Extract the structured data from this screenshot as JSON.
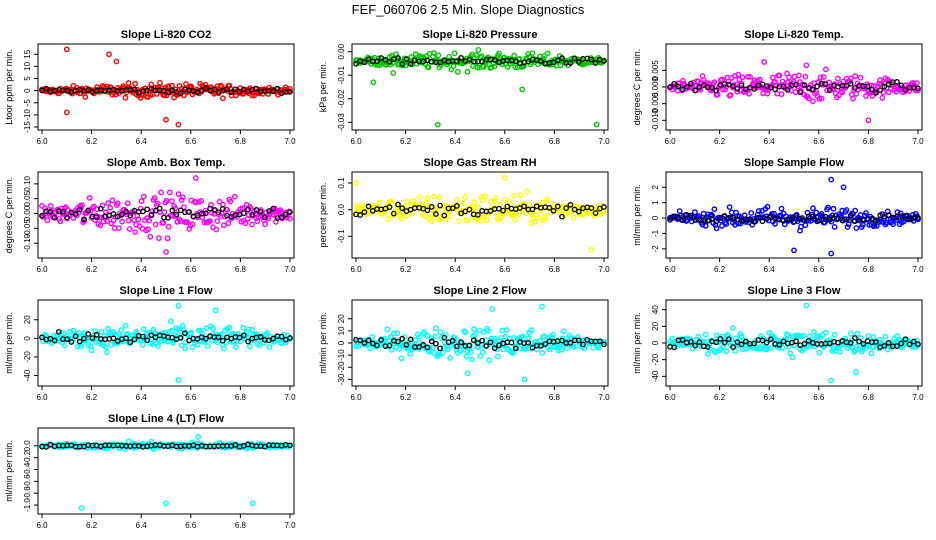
{
  "figure_title": "FEF_060706  2.5 Min. Slope Diagnostics",
  "colors": {
    "red": "#ff0000",
    "green": "#00c800",
    "magenta": "#ff00ff",
    "yellow": "#ffff00",
    "blue": "#0000ff",
    "cyan": "#00ffff",
    "black": "#000000"
  },
  "chart_data": [
    {
      "type": "scatter",
      "title": "Slope Li-820 CO2",
      "ylabel": "Ltoor ppm per min.",
      "xlim": [
        6.0,
        7.0
      ],
      "xticks": [
        "6.0",
        "6.2",
        "6.4",
        "6.6",
        "6.8",
        "7.0"
      ],
      "ylim": [
        -15,
        18
      ],
      "yticks": [
        "-15",
        "-10",
        "-5",
        "0",
        "5",
        "10",
        "15"
      ],
      "color": "red",
      "spread": 2.0,
      "outliers": [
        [
          6.1,
          17
        ],
        [
          6.27,
          15
        ],
        [
          6.55,
          -14
        ],
        [
          6.1,
          -9
        ],
        [
          6.3,
          12
        ],
        [
          6.5,
          -12
        ]
      ]
    },
    {
      "type": "scatter",
      "title": "Slope Li-820 Pressure",
      "ylabel": "kPa per min.",
      "xlim": [
        6.0,
        7.0
      ],
      "xticks": [
        "6.0",
        "6.2",
        "6.4",
        "6.6",
        "6.8",
        "7.0"
      ],
      "ylim": [
        -0.032,
        0.002
      ],
      "yticks": [
        "-0.03",
        "-0.02",
        "-0.01",
        "0.00"
      ],
      "color": "green",
      "spread": 0.0025,
      "center": -0.004,
      "outliers": [
        [
          6.33,
          -0.031
        ],
        [
          6.97,
          -0.031
        ],
        [
          6.07,
          -0.013
        ],
        [
          6.67,
          -0.016
        ],
        [
          6.15,
          -0.009
        ]
      ]
    },
    {
      "type": "scatter",
      "title": "Slope Li-820 Temp.",
      "ylabel": "degrees C per min.",
      "xlim": [
        6.0,
        7.0
      ],
      "xticks": [
        "6.0",
        "6.2",
        "6.4",
        "6.6",
        "6.8",
        "7.0"
      ],
      "ylim": [
        -0.012,
        0.012
      ],
      "yticks": [
        "-0.010",
        "-0.005",
        "0.000",
        "0.005"
      ],
      "color": "magenta",
      "spread": 0.003,
      "outliers": [
        [
          6.8,
          -0.01
        ],
        [
          6.38,
          0.0075
        ],
        [
          6.55,
          0.0065
        ]
      ]
    },
    {
      "type": "scatter",
      "title": "Slope Amb. Box Temp.",
      "ylabel": "degrees C per min.",
      "xlim": [
        6.0,
        7.0
      ],
      "xticks": [
        "6.0",
        "6.2",
        "6.4",
        "6.6",
        "6.8",
        "7.0"
      ],
      "ylim": [
        -0.14,
        0.13
      ],
      "yticks": [
        "-0.10",
        "-0.05",
        "0.00",
        "0.05",
        "0.10"
      ],
      "color": "magenta",
      "spread": 0.045,
      "outliers": [
        [
          6.62,
          0.12
        ],
        [
          6.5,
          -0.13
        ]
      ]
    },
    {
      "type": "scatter",
      "title": "Slope Gas Stream RH",
      "ylabel": "percent per min.",
      "xlim": [
        6.0,
        7.0
      ],
      "xticks": [
        "6.0",
        "6.2",
        "6.4",
        "6.6",
        "6.8",
        "7.0"
      ],
      "ylim": [
        -0.17,
        0.13
      ],
      "yticks": [
        "-0.1",
        "0.0",
        "0.1"
      ],
      "color": "yellow",
      "spread": 0.04,
      "outliers": [
        [
          6.6,
          0.12
        ],
        [
          6.0,
          0.1
        ],
        [
          6.95,
          -0.15
        ]
      ]
    },
    {
      "type": "scatter",
      "title": "Slope Sample Flow",
      "ylabel": "ml/min per min.",
      "xlim": [
        6.0,
        7.0
      ],
      "xticks": [
        "6.0",
        "6.2",
        "6.4",
        "6.6",
        "6.8",
        "7.0"
      ],
      "ylim": [
        -2.4,
        2.8
      ],
      "yticks": [
        "-2",
        "-1",
        "0",
        "1",
        "2"
      ],
      "color": "blue",
      "spread": 0.5,
      "outliers": [
        [
          6.65,
          2.5
        ],
        [
          6.7,
          2.0
        ],
        [
          6.5,
          -2.1
        ],
        [
          6.65,
          -2.3
        ]
      ]
    },
    {
      "type": "scatter",
      "title": "Slope Line 1 Flow",
      "ylabel": "ml/min per min.",
      "xlim": [
        6.0,
        7.0
      ],
      "xticks": [
        "6.0",
        "6.2",
        "6.4",
        "6.6",
        "6.8",
        "7.0"
      ],
      "ylim": [
        -48,
        38
      ],
      "yticks": [
        "-40",
        "-20",
        "0",
        "20"
      ],
      "color": "cyan",
      "spread": 10,
      "outliers": [
        [
          6.55,
          -45
        ],
        [
          6.55,
          35
        ],
        [
          6.7,
          30
        ]
      ]
    },
    {
      "type": "scatter",
      "title": "Slope Line 2 Flow",
      "ylabel": "ml/min per min.",
      "xlim": [
        6.0,
        7.0
      ],
      "xticks": [
        "6.0",
        "6.2",
        "6.4",
        "6.6",
        "6.8",
        "7.0"
      ],
      "ylim": [
        -33,
        33
      ],
      "yticks": [
        "-30",
        "-20",
        "-10",
        "0",
        "10",
        "20"
      ],
      "color": "cyan",
      "spread": 9,
      "outliers": [
        [
          6.68,
          -30
        ],
        [
          6.75,
          30
        ],
        [
          6.55,
          28
        ],
        [
          6.45,
          -25
        ]
      ]
    },
    {
      "type": "scatter",
      "title": "Slope Line 3 Flow",
      "ylabel": "ml/min per min.",
      "xlim": [
        6.0,
        7.0
      ],
      "xticks": [
        "6.0",
        "6.2",
        "6.4",
        "6.6",
        "6.8",
        "7.0"
      ],
      "ylim": [
        -48,
        48
      ],
      "yticks": [
        "-40",
        "-20",
        "0",
        "20",
        "40"
      ],
      "color": "cyan",
      "spread": 11,
      "outliers": [
        [
          6.65,
          -45
        ],
        [
          6.55,
          45
        ],
        [
          6.75,
          -35
        ]
      ]
    },
    {
      "type": "scatter",
      "title": "Slope Line 4 (LT) Flow",
      "ylabel": "ml/min per min.",
      "xlim": [
        6.0,
        7.0
      ],
      "xticks": [
        "6.0",
        "6.2",
        "6.4",
        "6.6",
        "6.8",
        "7.0"
      ],
      "ylim": [
        -1.1,
        0.25
      ],
      "yticks": [
        "-1.0",
        "-0.8",
        "-0.6",
        "-0.4",
        "-0.2",
        "0.0"
      ],
      "color": "cyan",
      "spread": 0.04,
      "outliers": [
        [
          6.16,
          -1.05
        ],
        [
          6.5,
          -0.97
        ],
        [
          6.85,
          -0.97
        ],
        [
          6.63,
          0.15
        ]
      ]
    }
  ]
}
